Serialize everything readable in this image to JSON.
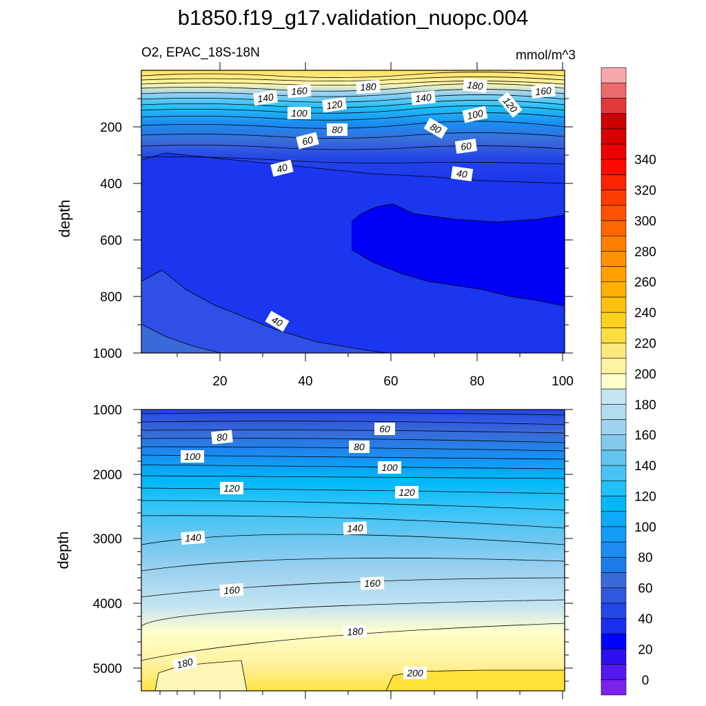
{
  "figure": {
    "title": "b1850.f19_g17.validation_nuopc.004",
    "left_subtitle": "O2, EPAC_18S-18N",
    "right_subtitle": "mmol/m^3"
  },
  "chart_data": [
    {
      "type": "heatmap",
      "panel": "upper",
      "ylabel": "depth",
      "xlim": [
        1,
        101
      ],
      "ylim": [
        0,
        1000
      ],
      "y_reversed": true,
      "xticks": [
        "20",
        "40",
        "60",
        "80",
        "100"
      ],
      "yticks": [
        "200",
        "400",
        "600",
        "800",
        "1000"
      ],
      "contour_interval": 10,
      "contour_labels": [
        "140",
        "160",
        "180",
        "120",
        "140",
        "180",
        "120",
        "160",
        "100",
        "80",
        "100",
        "80",
        "60",
        "60",
        "40",
        "40",
        "40"
      ]
    },
    {
      "type": "heatmap",
      "panel": "lower",
      "ylabel": "depth",
      "xlim": [
        1,
        101
      ],
      "ylim": [
        1000,
        5350
      ],
      "y_reversed": true,
      "yticks": [
        "1000",
        "2000",
        "3000",
        "4000",
        "5000"
      ],
      "contour_interval": 10,
      "contour_labels": [
        "80",
        "60",
        "80",
        "100",
        "100",
        "120",
        "120",
        "140",
        "140",
        "160",
        "160",
        "180",
        "180",
        "200"
      ]
    }
  ],
  "colorbar": {
    "labels": [
      "0",
      "20",
      "40",
      "60",
      "80",
      "100",
      "120",
      "140",
      "160",
      "180",
      "200",
      "220",
      "240",
      "260",
      "280",
      "300",
      "320",
      "340"
    ],
    "colors": [
      "#7a22ee",
      "#5518ee",
      "#2e10ee",
      "#0000ff",
      "#1a2ef0",
      "#2546e6",
      "#3058dc",
      "#3a6ad8",
      "#1c7cec",
      "#1a8cf2",
      "#149cf6",
      "#0aaaf6",
      "#00b8f8",
      "#20c0f8",
      "#48c4f4",
      "#64c4f0",
      "#84c8ec",
      "#9ed2f0",
      "#b2dcf0",
      "#c6e4f2",
      "#ffffcc",
      "#fff2a0",
      "#ffe880",
      "#ffdd40",
      "#ffd020",
      "#ffc010",
      "#ffb000",
      "#ffa000",
      "#ff9000",
      "#ff7e00",
      "#ff6800",
      "#ff5200",
      "#ff3c00",
      "#ff2400",
      "#ff0a00",
      "#ee0000",
      "#d80000",
      "#cc0000",
      "#e03a3a",
      "#ec6a6a",
      "#f6a8a8"
    ]
  }
}
